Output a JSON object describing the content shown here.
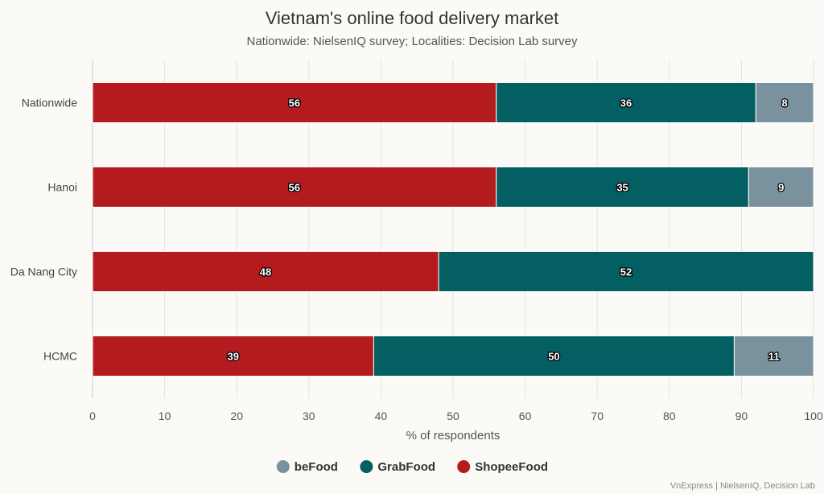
{
  "chart_data": {
    "type": "bar",
    "orientation": "horizontal",
    "stacked": true,
    "title": "Vietnam's online food delivery market",
    "subtitle": "Nationwide: NielsenIQ survey; Localities: Decision Lab survey",
    "xlabel": "% of respondents",
    "ylabel": "",
    "xlim": [
      0,
      100
    ],
    "xticks": [
      0,
      10,
      20,
      30,
      40,
      50,
      60,
      70,
      80,
      90,
      100
    ],
    "grid": true,
    "categories": [
      "Nationwide",
      "Hanoi",
      "Da Nang City",
      "HCMC"
    ],
    "series": [
      {
        "name": "ShopeeFood",
        "color": "#b31b1e",
        "values": [
          56,
          56,
          48,
          39
        ]
      },
      {
        "name": "GrabFood",
        "color": "#035f61",
        "values": [
          36,
          35,
          52,
          50
        ]
      },
      {
        "name": "beFood",
        "color": "#7a919e",
        "values": [
          8,
          9,
          0,
          11
        ]
      }
    ],
    "legend": {
      "position": "bottom",
      "order": [
        "beFood",
        "GrabFood",
        "ShopeeFood"
      ]
    },
    "credit": "VnExpress | NielsenIQ, Decision Lab"
  }
}
